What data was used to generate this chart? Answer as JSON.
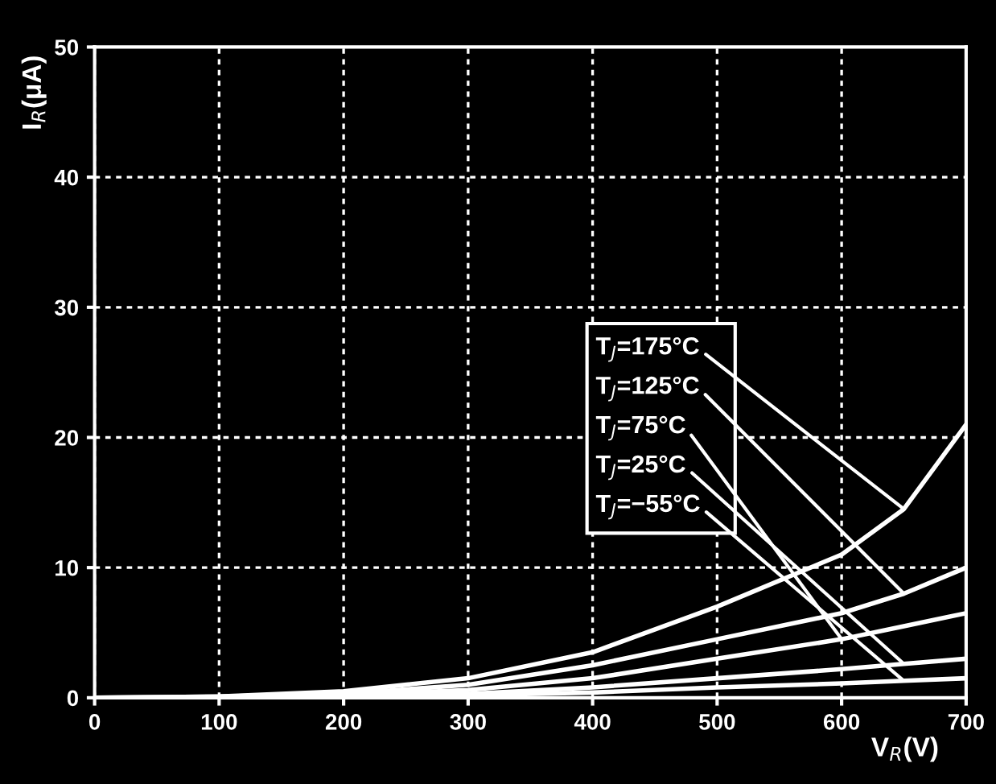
{
  "chart_data": {
    "type": "line",
    "xlabel": "V$_{R}$(V)",
    "ylabel": "I$_{R}$(μA)",
    "x": [
      0,
      100,
      200,
      300,
      400,
      500,
      600,
      650,
      700
    ],
    "series": [
      {
        "name": "T$_{J}$=175°C",
        "color": "#ffffff",
        "values": [
          0,
          0.1,
          0.5,
          1.5,
          3.5,
          7,
          11,
          14.5,
          21
        ]
      },
      {
        "name": "T$_{J}$=125°C",
        "color": "#ffffff",
        "values": [
          0,
          0.1,
          0.3,
          1,
          2.5,
          4.5,
          6.5,
          8,
          10
        ]
      },
      {
        "name": "T$_{J}$=75°C",
        "color": "#ffffff",
        "values": [
          0,
          0,
          0.2,
          0.6,
          1.5,
          3,
          4.5,
          5.5,
          6.5
        ]
      },
      {
        "name": "T$_{J}$=25°C",
        "color": "#ffffff",
        "values": [
          0,
          0,
          0.1,
          0.3,
          0.8,
          1.5,
          2.2,
          2.6,
          3
        ]
      },
      {
        "name": "T$_{J}$=−55°C",
        "color": "#ffffff",
        "values": [
          0,
          0,
          0.1,
          0.2,
          0.4,
          0.8,
          1.1,
          1.3,
          1.5
        ]
      }
    ],
    "xlim": [
      0,
      700
    ],
    "xticks": [
      0,
      100,
      200,
      300,
      400,
      500,
      600,
      700
    ],
    "ylim": [
      0,
      50
    ],
    "yticks": [
      0,
      10,
      20,
      30,
      40,
      50
    ],
    "grid": true,
    "line_style": "solid",
    "marker": "none"
  }
}
